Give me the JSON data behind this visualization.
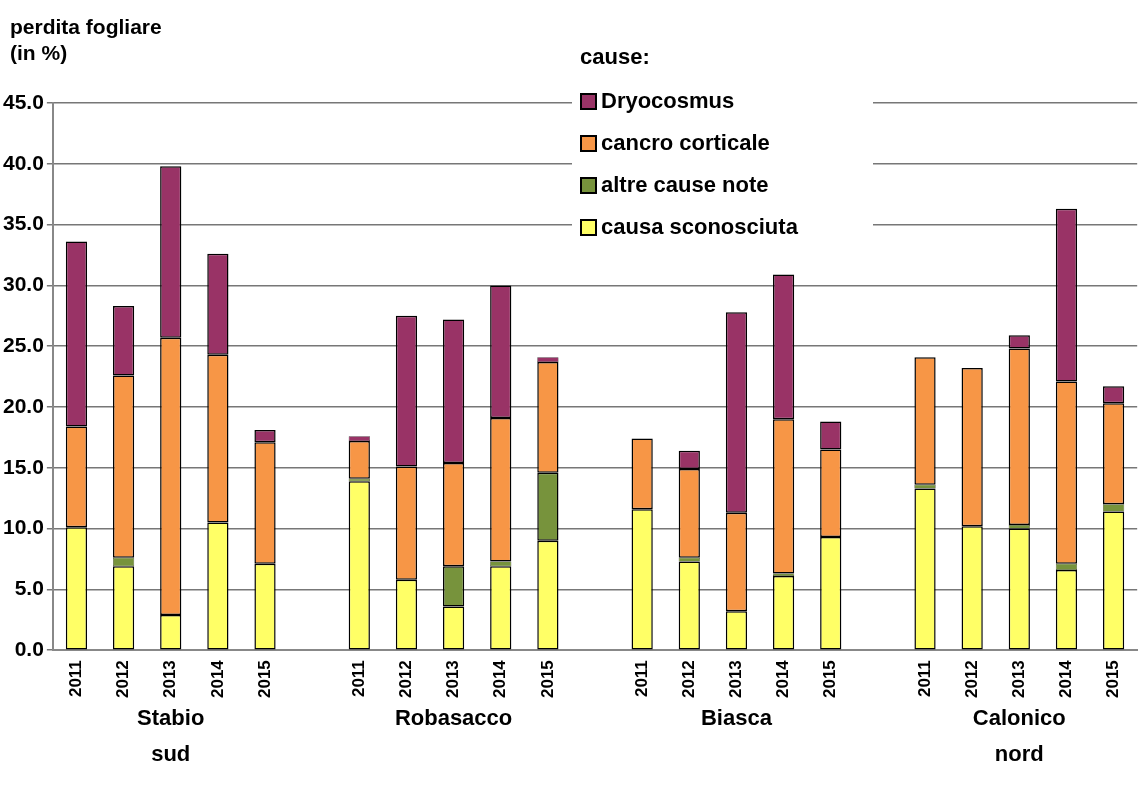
{
  "chart_data": {
    "type": "bar",
    "stacked": true,
    "ylabel": "perdita fogliare (in %)",
    "legend_title": "cause:",
    "legend": "top right",
    "grid": "y",
    "categories": [
      "2011",
      "2012",
      "2013",
      "2014",
      "2015",
      null,
      "2011",
      "2012",
      "2013",
      "2014",
      "2015",
      null,
      "2011",
      "2012",
      "2013",
      "2014",
      "2015",
      null,
      "2011",
      "2012",
      "2013",
      "2014",
      "2015"
    ],
    "series": [
      {
        "name": "causa sconosciuta",
        "color": "#ffff66",
        "values": [
          10.1,
          6.9,
          2.9,
          10.5,
          7.1,
          null,
          13.9,
          5.8,
          3.6,
          6.9,
          9.0,
          null,
          11.6,
          7.3,
          3.2,
          6.1,
          9.3,
          null,
          13.3,
          10.2,
          10.0,
          6.6,
          11.4
        ]
      },
      {
        "name": "altre cause note",
        "color": "#77933c",
        "values": [
          0,
          0.7,
          0,
          0,
          0,
          null,
          0.2,
          0,
          3.3,
          0.4,
          5.6,
          null,
          0,
          0.3,
          0,
          0.2,
          0,
          null,
          0.3,
          0,
          0.3,
          0.5,
          0.6
        ]
      },
      {
        "name": "cancro corticale",
        "color": "#f79646",
        "values": [
          8.3,
          15.0,
          22.8,
          13.8,
          10.0,
          null,
          3.1,
          9.3,
          8.5,
          11.8,
          9.1,
          null,
          5.8,
          7.3,
          8.1,
          12.7,
          7.2,
          null,
          10.5,
          13.0,
          14.5,
          15.0,
          8.3
        ]
      },
      {
        "name": "Dryocosmus",
        "color": "#993366",
        "values": [
          15.2,
          5.7,
          14.1,
          8.3,
          1.0,
          null,
          0.4,
          12.4,
          11.8,
          10.9,
          0.4,
          null,
          0,
          1.5,
          16.5,
          11.9,
          2.3,
          null,
          0,
          0,
          1.1,
          14.2,
          1.4
        ]
      }
    ],
    "ylim": [
      0,
      45
    ],
    "yticks": [
      {
        "value": 0,
        "label": "0.0"
      },
      {
        "value": 5,
        "label": "5.0"
      },
      {
        "value": 10,
        "label": "10.0"
      },
      {
        "value": 15,
        "label": "15.0"
      },
      {
        "value": 20,
        "label": "20.0"
      },
      {
        "value": 25,
        "label": "25.0"
      },
      {
        "value": 30,
        "label": "30.0"
      },
      {
        "value": 35,
        "label": "35.0"
      },
      {
        "value": 40,
        "label": "40.0"
      },
      {
        "value": 45,
        "label": "45.0"
      }
    ],
    "annotations": [
      "Stabio sud",
      "Robasacco",
      "Biasca",
      "Calonico nord"
    ]
  }
}
